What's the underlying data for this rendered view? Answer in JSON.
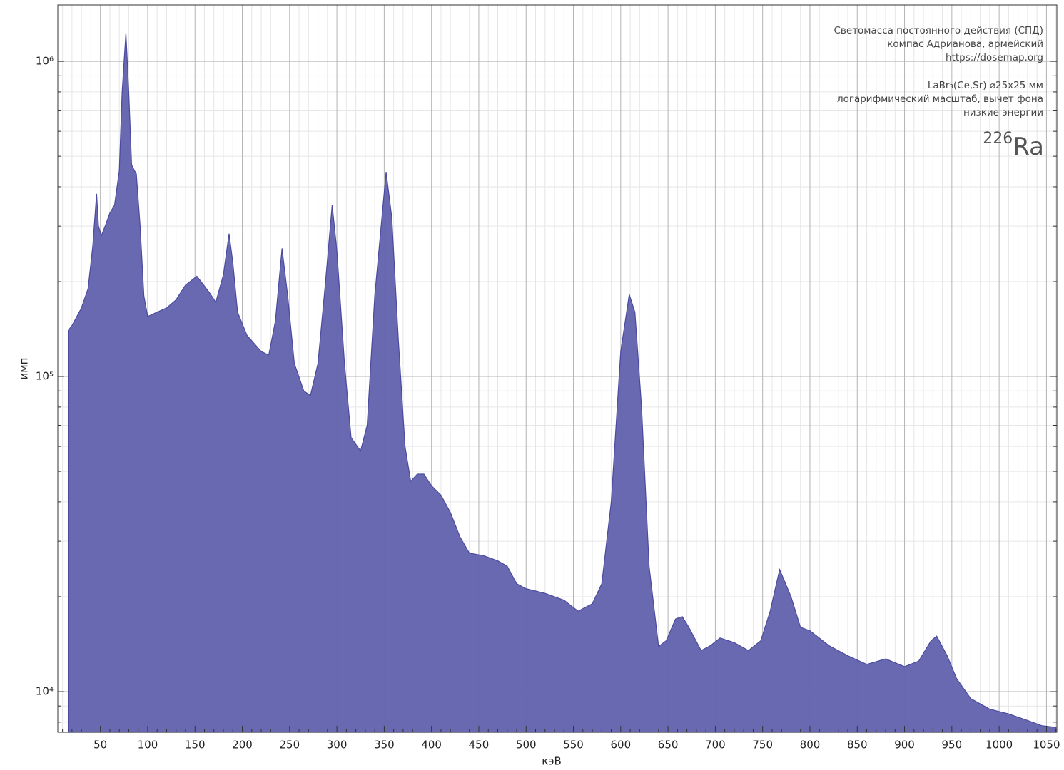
{
  "chart_data": {
    "type": "area",
    "annotations": [
      "Светомасса постоянного действия (СПД)",
      "компас Адрианова, армейский",
      "https://dosemap.org",
      "LaBr₃(Ce,Sr) ⌀25x25 мм",
      "логарифмический масштаб, вычет фона",
      "низкие энергии"
    ],
    "nuclide": {
      "mass": "226",
      "symbol": "Ra"
    },
    "xlabel": "кэВ",
    "ylabel": "имп",
    "color": "#6464b0",
    "edge_color": "#4a4a9e",
    "yscale": "log",
    "grid": true,
    "xlim": [
      5,
      1061
    ],
    "ylim": [
      7430,
      1510000
    ],
    "xticks": [
      50,
      100,
      150,
      200,
      250,
      300,
      350,
      400,
      450,
      500,
      550,
      600,
      650,
      700,
      750,
      800,
      850,
      900,
      950,
      1000,
      1050
    ],
    "xminorticks": [
      10,
      20,
      30,
      40,
      60,
      70,
      80,
      90,
      110,
      120,
      130,
      140,
      160,
      170,
      180,
      190,
      210,
      220,
      230,
      240,
      260,
      270,
      280,
      290,
      310,
      320,
      330,
      340,
      360,
      370,
      380,
      390,
      410,
      420,
      430,
      440,
      460,
      470,
      480,
      490,
      510,
      520,
      530,
      540,
      560,
      570,
      580,
      590,
      610,
      620,
      630,
      640,
      660,
      670,
      680,
      690,
      710,
      720,
      730,
      740,
      760,
      770,
      780,
      790,
      810,
      820,
      830,
      840,
      860,
      870,
      880,
      890,
      910,
      920,
      930,
      940,
      960,
      970,
      980,
      990,
      1010,
      1020,
      1030,
      1040,
      1060
    ],
    "yticks": [
      {
        "value": 10000,
        "label": "10⁴"
      },
      {
        "value": 100000,
        "label": "10⁵"
      },
      {
        "value": 1000000,
        "label": "10⁶"
      }
    ],
    "yminorticks": [
      8000,
      9000,
      20000,
      30000,
      40000,
      50000,
      60000,
      70000,
      80000,
      90000,
      200000,
      300000,
      400000,
      500000,
      600000,
      700000,
      800000,
      900000
    ],
    "x": [
      16,
      20,
      30,
      37,
      42,
      46,
      48,
      51,
      55,
      60,
      65,
      70,
      73,
      77,
      80,
      83,
      86,
      88,
      92,
      96,
      100,
      110,
      120,
      130,
      140,
      152,
      165,
      172,
      180,
      186,
      190,
      195,
      205,
      220,
      228,
      235,
      242,
      248,
      255,
      265,
      272,
      280,
      288,
      295,
      300,
      308,
      315,
      325,
      332,
      340,
      352,
      358,
      365,
      372,
      378,
      385,
      392,
      400,
      410,
      420,
      430,
      440,
      455,
      470,
      480,
      490,
      500,
      520,
      540,
      555,
      570,
      580,
      590,
      600,
      609,
      615,
      622,
      630,
      640,
      648,
      658,
      665,
      672,
      685,
      695,
      705,
      720,
      735,
      748,
      758,
      768,
      780,
      790,
      800,
      820,
      840,
      860,
      880,
      900,
      915,
      928,
      934,
      945,
      955,
      970,
      990,
      1010,
      1030,
      1045,
      1060
    ],
    "values": [
      140000,
      145000,
      165000,
      190000,
      260000,
      380000,
      300000,
      280000,
      300000,
      330000,
      350000,
      450000,
      800000,
      1230000,
      800000,
      470000,
      450000,
      440000,
      300000,
      180000,
      155000,
      160000,
      165000,
      175000,
      195000,
      208000,
      185000,
      172000,
      210000,
      284000,
      230000,
      160000,
      135000,
      120000,
      117000,
      150000,
      255000,
      180000,
      110000,
      90000,
      87000,
      110000,
      200000,
      350000,
      250000,
      110000,
      64000,
      58000,
      70000,
      180000,
      446000,
      320000,
      130000,
      60000,
      46500,
      49000,
      49000,
      45000,
      42000,
      37000,
      31000,
      27500,
      27000,
      26000,
      25000,
      22000,
      21200,
      20500,
      19500,
      18000,
      19000,
      22000,
      40000,
      120000,
      182000,
      160000,
      80000,
      25000,
      13900,
      14500,
      17000,
      17300,
      16000,
      13500,
      14000,
      14800,
      14300,
      13500,
      14500,
      18000,
      24400,
      20000,
      16000,
      15600,
      14000,
      13000,
      12200,
      12700,
      12000,
      12500,
      14500,
      15000,
      13000,
      11000,
      9500,
      8800,
      8500,
      8100,
      7800,
      7700
    ]
  }
}
